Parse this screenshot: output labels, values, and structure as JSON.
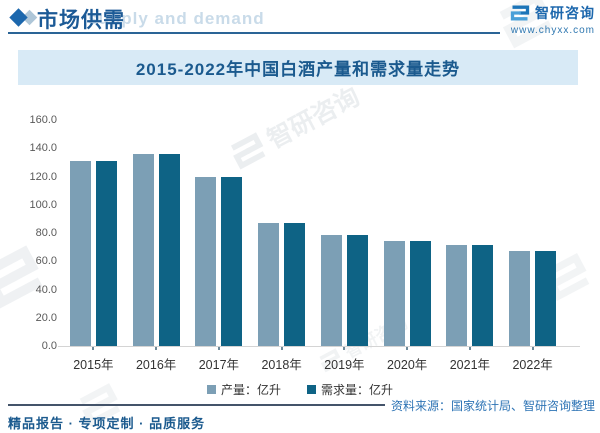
{
  "header": {
    "title": "市场供需",
    "ghost_text": "supply and demand",
    "brand_name": "智研咨询",
    "brand_url": "www.chyxx.com"
  },
  "watermark": {
    "text": "智研咨询"
  },
  "chart_data": {
    "type": "bar",
    "title": "2015-2022年中国白酒产量和需求量走势",
    "categories": [
      "2015年",
      "2016年",
      "2017年",
      "2018年",
      "2019年",
      "2020年",
      "2021年",
      "2022年"
    ],
    "series": [
      {
        "name": "产量：亿升",
        "color": "#7C9FB5",
        "values": [
          131.2,
          135.8,
          119.8,
          87.1,
          78.6,
          74.1,
          71.6,
          67.1
        ]
      },
      {
        "name": "需求量：亿升",
        "color": "#0E6385",
        "values": [
          130.8,
          135.7,
          119.3,
          86.9,
          78.4,
          74.0,
          71.4,
          67.0
        ]
      }
    ],
    "ylim": [
      0,
      160
    ],
    "ytick_step": 20,
    "yticks": [
      "160.0",
      "140.0",
      "120.0",
      "100.0",
      "80.0",
      "60.0",
      "40.0",
      "20.0",
      "0.0"
    ],
    "grid": false,
    "legend_position": "bottom"
  },
  "footer": {
    "source": "资料来源：国家统计局、智研咨询整理",
    "tagline": "精品报告 · 专项定制 · 品质服务"
  }
}
